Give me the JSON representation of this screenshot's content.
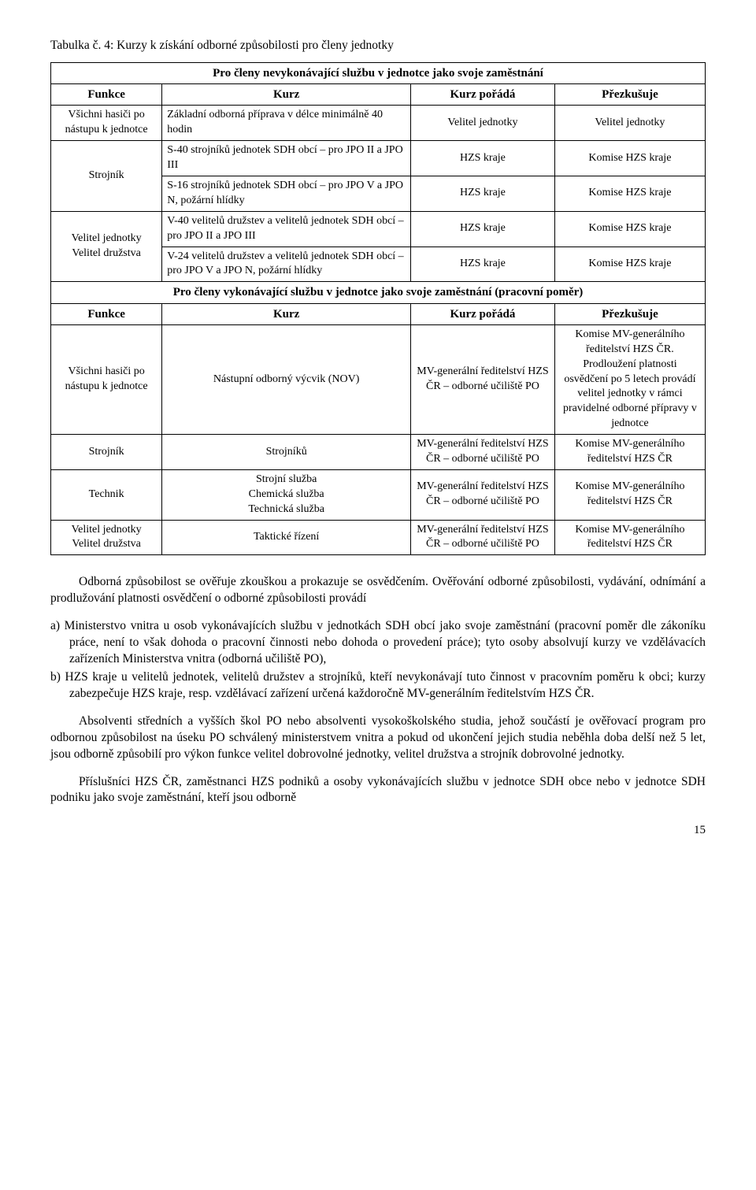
{
  "caption": "Tabulka č. 4: Kurzy k získání odborné způsobilosti pro členy jednotky",
  "section_a_title": "Pro členy nevykonávající službu v jednotce jako svoje zaměstnání",
  "hdr": {
    "funkce": "Funkce",
    "kurz": "Kurz",
    "porada": "Kurz pořádá",
    "prezk": "Přezkušuje"
  },
  "rows_a": [
    {
      "funkce": "Všichni hasiči po nástupu k jednotce",
      "kurz": "Základní   odborná   příprava   v délce minimálně 40 hodin",
      "porada": "Velitel jednotky",
      "prezk": "Velitel jednotky"
    },
    {
      "funkce": "Strojník",
      "kurz": "S-40 strojníků jednotek SDH obcí – pro JPO II a JPO III",
      "porada": "HZS kraje",
      "prezk": "Komise HZS kraje"
    },
    {
      "kurz": "S-16 strojníků jednotek SDH obcí – pro JPO V a JPO N, požární hlídky",
      "porada": "HZS kraje",
      "prezk": "Komise HZS kraje"
    },
    {
      "funkce": "Velitel jednotky Velitel družstva",
      "kurz": "V-40 velitelů družstev a velitelů jednotek SDH obcí – pro JPO II a JPO III",
      "porada": "HZS kraje",
      "prezk": "Komise HZS kraje"
    },
    {
      "kurz": "V-24 velitelů družstev a velitelů jednotek SDH obcí – pro JPO V a JPO N, požární hlídky",
      "porada": "HZS kraje",
      "prezk": "Komise HZS kraje"
    }
  ],
  "section_b_title": "Pro členy vykonávající službu v jednotce jako svoje zaměstnání (pracovní poměr)",
  "rows_b": [
    {
      "funkce": "Všichni hasiči po nástupu k jednotce",
      "kurz": "Nástupní odborný výcvik (NOV)",
      "porada": "MV-generální ředitelství HZS ČR – odborné učiliště PO",
      "prezk": "Komise MV-generálního ředitelství HZS ČR. Prodloužení platnosti osvědčení po 5 letech provádí velitel jednotky v rámci pravidelné odborné přípravy v jednotce"
    },
    {
      "funkce": "Strojník",
      "kurz": "Strojníků",
      "porada": "MV-generální ředitelství HZS ČR – odborné učiliště PO",
      "prezk": "Komise MV-generálního ředitelství HZS ČR"
    },
    {
      "funkce": "Technik",
      "kurz": "Strojní služba\nChemická služba\nTechnická služba",
      "porada": "MV-generální ředitelství HZS ČR – odborné učiliště PO",
      "prezk": "Komise MV-generálního ředitelství HZS ČR"
    },
    {
      "funkce": "Velitel jednotky Velitel družstva",
      "kurz": "Taktické řízení",
      "porada": "MV-generální ředitelství HZS ČR – odborné učiliště PO",
      "prezk": "Komise MV-generálního ředitelství HZS ČR"
    }
  ],
  "para1": "Odborná způsobilost se ověřuje zkouškou a prokazuje se osvědčením. Ověřování odborné způsobilosti, vydávání, odnímání a prodlužování platnosti osvědčení o odborné způsobilosti provádí",
  "abc": [
    "a)  Ministerstvo vnitra u osob vykonávajících službu v jednotkách SDH obcí jako svoje zaměstnání (pracovní poměr dle zákoníku práce, není to však dohoda o pracovní činnosti nebo dohoda o provedení práce); tyto osoby absolvují kurzy ve vzdělávacích zařízeních Ministerstva vnitra (odborná učiliště PO),",
    "b)  HZS kraje u velitelů jednotek, velitelů družstev a strojníků, kteří nevykonávají tuto činnost v pracovním poměru k obci; kurzy zabezpečuje HZS kraje, resp. vzdělávací zařízení určená každoročně MV-generálním ředitelstvím HZS ČR."
  ],
  "para2": "Absolventi středních a vyšších škol PO nebo absolventi vysokoškolského studia, jehož součástí je ověřovací program pro odbornou způsobilost na úseku PO schválený ministerstvem vnitra a pokud od ukončení jejich studia neběhla doba delší než 5 let, jsou odborně způsobilí pro výkon funkce velitel dobrovolné jednotky, velitel družstva a strojník dobrovolné jednotky.",
  "para3": "Příslušníci HZS ČR, zaměstnanci HZS podniků a osoby vykonávajících službu v jednotce SDH obce nebo v jednotce SDH podniku jako svoje zaměstnání, kteří jsou odborně",
  "pagenum": "15"
}
